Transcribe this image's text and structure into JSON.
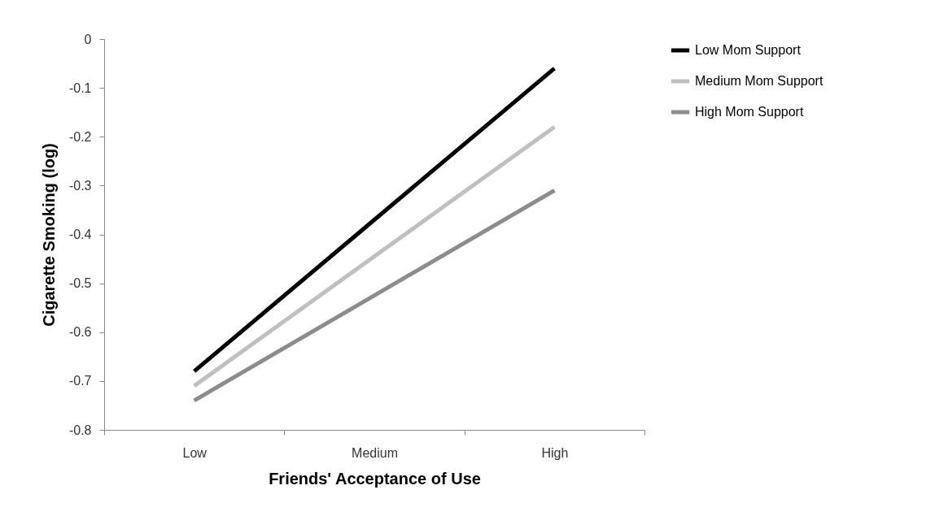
{
  "chart_data": {
    "type": "line",
    "xlabel": "Friends' Acceptance of Use",
    "ylabel": "Cigarette Smoking (log)",
    "categories": [
      "Low",
      "Medium",
      "High"
    ],
    "series": [
      {
        "name": "Low Mom Support",
        "color": "#000000",
        "values": [
          -0.68,
          -0.37,
          -0.06
        ]
      },
      {
        "name": "Medium Mom Support",
        "color": "#bfbfbf",
        "values": [
          -0.71,
          -0.445,
          -0.18
        ]
      },
      {
        "name": "High Mom Support",
        "color": "#8c8c8c",
        "values": [
          -0.74,
          -0.525,
          -0.31
        ]
      }
    ],
    "ylim": [
      -0.8,
      0
    ],
    "yticks": [
      -0.8,
      -0.7,
      -0.6,
      -0.5,
      -0.4,
      -0.3,
      -0.2,
      -0.1,
      0
    ],
    "grid": false,
    "legend": "right",
    "line_style": "solid"
  }
}
